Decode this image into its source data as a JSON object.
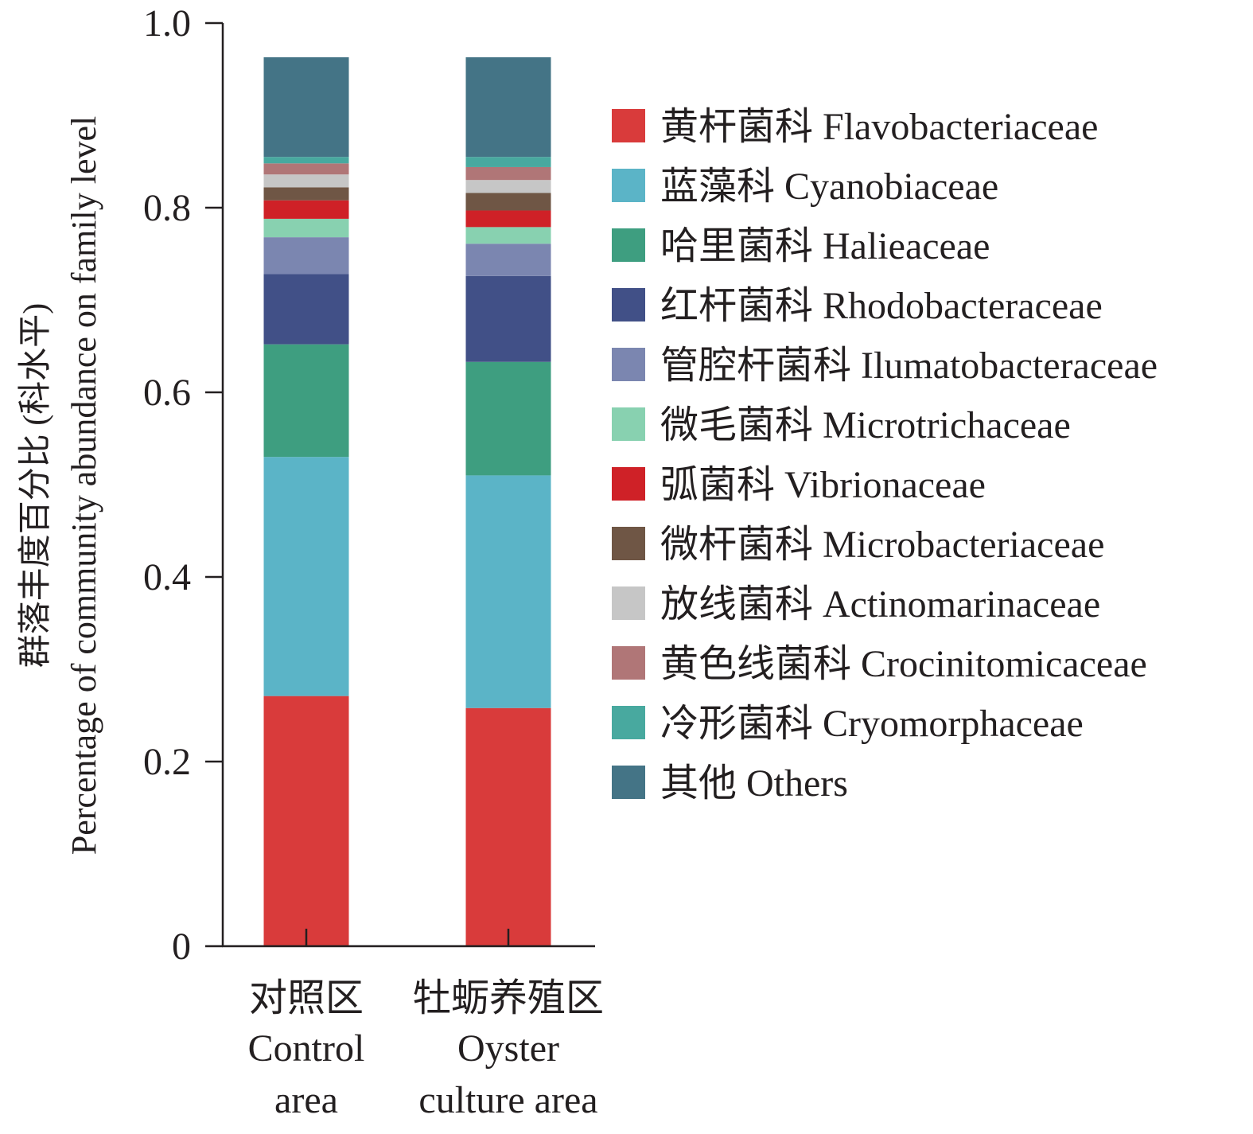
{
  "chart_data": {
    "type": "bar",
    "stacked": true,
    "title": "",
    "ylabel_cn": "群落丰度百分比 (科水平)",
    "ylabel": "Percentage of community abundance on family level",
    "ylim": [
      0,
      1.0
    ],
    "yticks": [
      "0",
      "0.2",
      "0.4",
      "0.6",
      "0.8",
      "1.0"
    ],
    "ytick_values": [
      0,
      0.2,
      0.4,
      0.6,
      0.8,
      1.0
    ],
    "categories": [
      {
        "cn": "对照区",
        "en1": "Control",
        "en2": "area"
      },
      {
        "cn": "牡蛎养殖区",
        "en1": "Oyster",
        "en2": "culture area"
      }
    ],
    "legend_position": "right",
    "series": [
      {
        "name": "黄杆菌科 Flavobacteriaceae",
        "color": "#d93b3b",
        "values": [
          0.271,
          0.258
        ]
      },
      {
        "name": "蓝藻科 Cyanobiaceae",
        "color": "#5bb4c7",
        "values": [
          0.259,
          0.252
        ]
      },
      {
        "name": "哈里菌科 Halieaceae",
        "color": "#3e9e80",
        "values": [
          0.122,
          0.123
        ]
      },
      {
        "name": "红杆菌科 Rhodobacteraceae",
        "color": "#415087",
        "values": [
          0.076,
          0.093
        ]
      },
      {
        "name": "管腔杆菌科 Ilumatobacteraceae",
        "color": "#7b86b0",
        "values": [
          0.04,
          0.035
        ]
      },
      {
        "name": "微毛菌科 Microtrichaceae",
        "color": "#88d1b0",
        "values": [
          0.02,
          0.018
        ]
      },
      {
        "name": "弧菌科 Vibrionaceae",
        "color": "#cf2127",
        "values": [
          0.02,
          0.018
        ]
      },
      {
        "name": "微杆菌科 Microbacteriaceae",
        "color": "#6f5645",
        "values": [
          0.014,
          0.019
        ]
      },
      {
        "name": "放线菌科 Actinomarinaceae",
        "color": "#c6c6c6",
        "values": [
          0.014,
          0.014
        ]
      },
      {
        "name": "黄色线菌科 Crocinitomicaceae",
        "color": "#b07677",
        "values": [
          0.012,
          0.014
        ]
      },
      {
        "name": "冷形菌科 Cryomorphaceae",
        "color": "#48a99f",
        "values": [
          0.007,
          0.011
        ]
      },
      {
        "name": "其他 Others",
        "color": "#447486",
        "values": [
          0.108,
          0.108
        ]
      }
    ]
  }
}
